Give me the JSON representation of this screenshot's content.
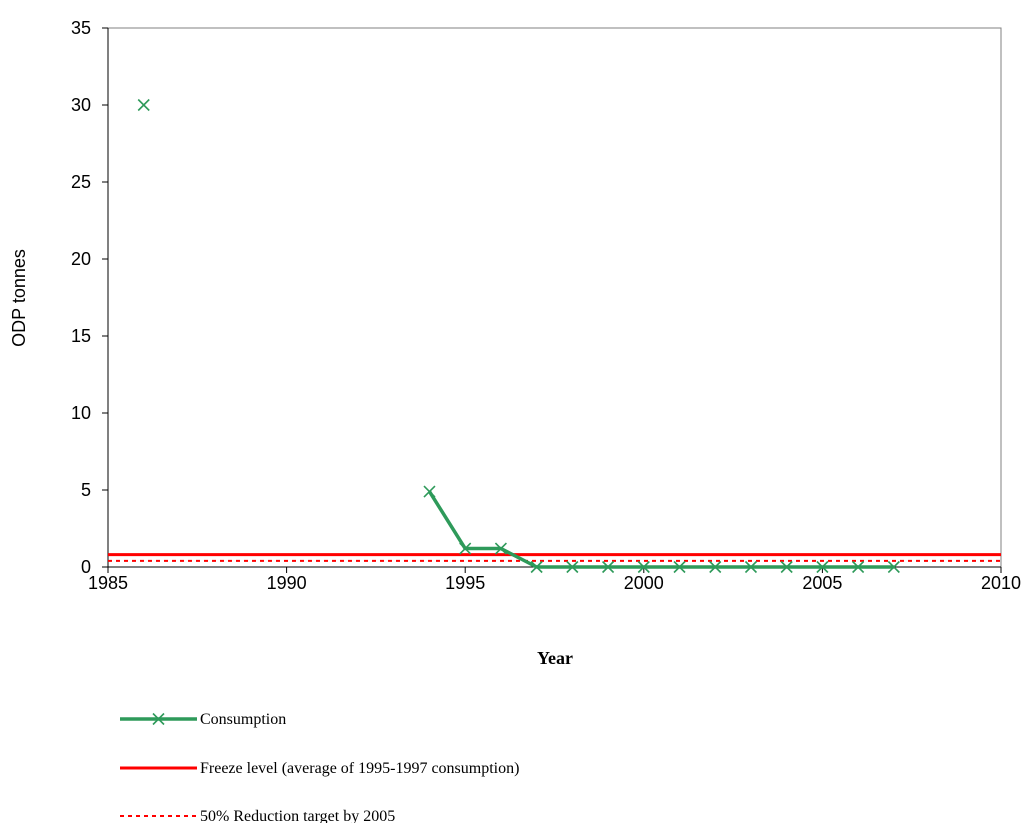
{
  "chart_data": {
    "type": "line",
    "xlabel": "Year",
    "ylabel": "ODP tonnes",
    "xlim": [
      1985,
      2010
    ],
    "ylim": [
      0,
      35
    ],
    "x_ticks": [
      1985,
      1990,
      1995,
      2000,
      2005,
      2010
    ],
    "y_ticks": [
      0,
      5,
      10,
      15,
      20,
      25,
      30,
      35
    ],
    "grid": false,
    "legend_position": "bottom-left",
    "series": [
      {
        "name": "Consumption",
        "color": "#2e9a5a",
        "style": "line-with-x-markers",
        "points": [
          {
            "x": 1986,
            "y": 30
          },
          {
            "x": 1994,
            "y": 4.9
          },
          {
            "x": 1995,
            "y": 1.2
          },
          {
            "x": 1996,
            "y": 1.2
          },
          {
            "x": 1997,
            "y": 0
          },
          {
            "x": 1998,
            "y": 0
          },
          {
            "x": 1999,
            "y": 0
          },
          {
            "x": 2000,
            "y": 0
          },
          {
            "x": 2001,
            "y": 0
          },
          {
            "x": 2002,
            "y": 0
          },
          {
            "x": 2003,
            "y": 0
          },
          {
            "x": 2004,
            "y": 0
          },
          {
            "x": 2005,
            "y": 0
          },
          {
            "x": 2006,
            "y": 0
          },
          {
            "x": 2007,
            "y": 0
          }
        ],
        "line_segments": [
          [
            1994,
            2007
          ]
        ]
      },
      {
        "name": "Freeze level (average of 1995-1997 consumption)",
        "color": "#ff0000",
        "style": "solid",
        "value": 0.8
      },
      {
        "name": "50% Reduction target by 2005",
        "color": "#ff0000",
        "style": "dotted",
        "value": 0.4
      }
    ]
  }
}
